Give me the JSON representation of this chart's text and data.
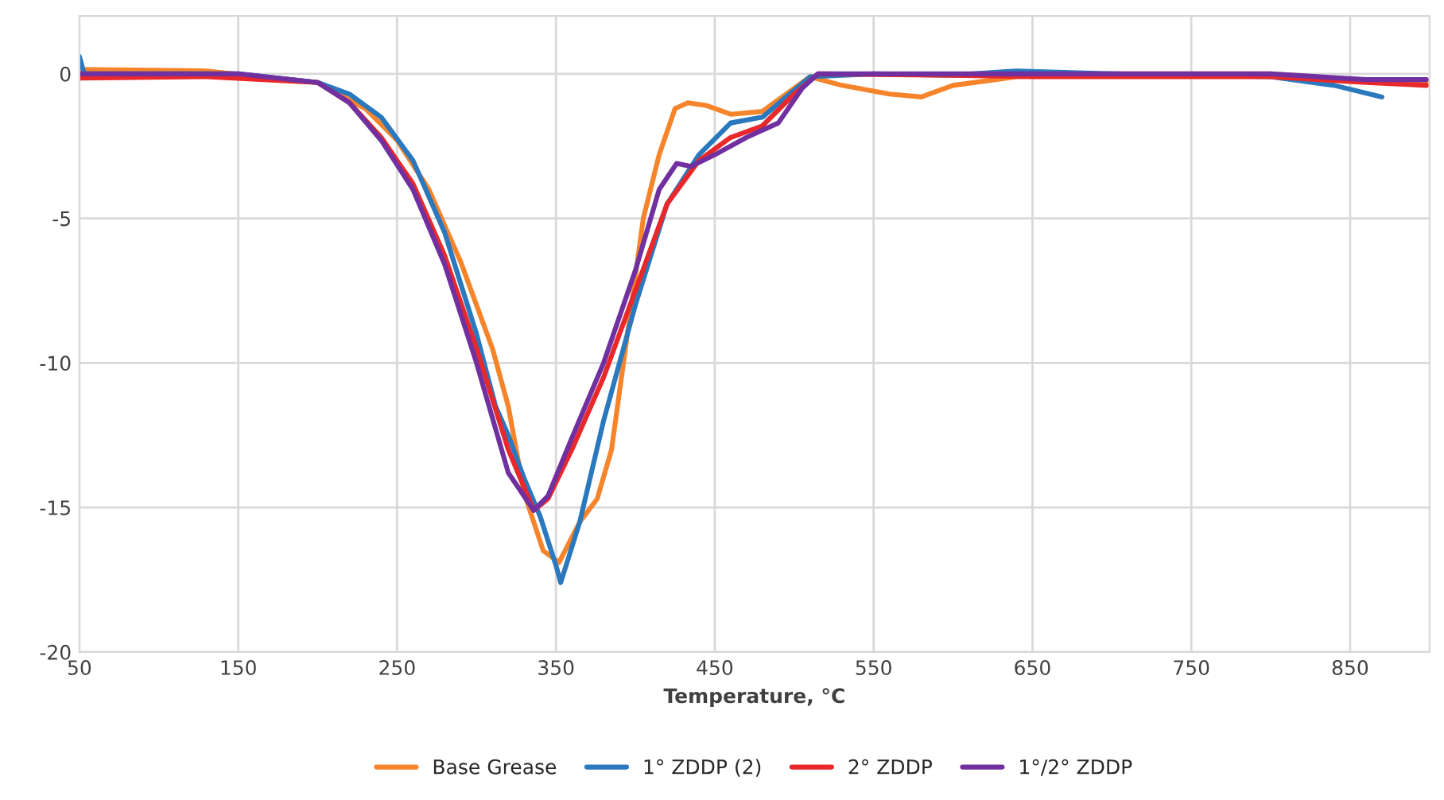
{
  "chart_data": {
    "type": "line",
    "xlabel": "Temperature, °C",
    "xlim": [
      50,
      900
    ],
    "xticks": [
      50,
      150,
      250,
      350,
      450,
      550,
      650,
      750,
      850
    ],
    "ylim": [
      -20,
      2
    ],
    "yticks": [
      0,
      -5,
      -10,
      -15,
      -20
    ],
    "grid": true,
    "legend": "bottom",
    "line_style": "solid",
    "marker": "none",
    "series": [
      {
        "name": "Base Grease",
        "color": "#f5842a",
        "x": [
          50,
          130,
          200,
          230,
          250,
          270,
          290,
          310,
          320,
          330,
          342,
          352,
          365,
          376,
          385,
          395,
          405,
          415,
          425,
          433,
          445,
          460,
          480,
          495,
          510,
          530,
          560,
          580,
          600,
          640,
          700,
          800,
          880,
          898
        ],
        "values": [
          0.15,
          0.1,
          -0.3,
          -1.2,
          -2.3,
          -4,
          -6.5,
          -9.5,
          -11.5,
          -14.5,
          -16.5,
          -16.9,
          -15.5,
          -14.7,
          -13,
          -9,
          -5,
          -2.8,
          -1.2,
          -1.0,
          -1.1,
          -1.4,
          -1.3,
          -0.7,
          -0.1,
          -0.4,
          -0.7,
          -0.8,
          -0.4,
          -0.1,
          0,
          0,
          -0.3,
          -0.3
        ]
      },
      {
        "name": "1° ZDDP (2)",
        "color": "#2a78bd",
        "x": [
          50,
          53,
          100,
          150,
          200,
          220,
          240,
          260,
          280,
          300,
          312,
          320,
          330,
          340,
          350,
          353,
          365,
          380,
          400,
          420,
          440,
          460,
          480,
          495,
          510,
          550,
          600,
          640,
          700,
          800,
          840,
          870
        ],
        "values": [
          0.6,
          0,
          0,
          0,
          -0.3,
          -0.7,
          -1.5,
          -3,
          -5.5,
          -9,
          -11.5,
          -12.5,
          -14,
          -15.3,
          -17,
          -17.6,
          -15.5,
          -12,
          -8,
          -4.5,
          -2.8,
          -1.7,
          -1.5,
          -0.8,
          -0.1,
          0,
          -0.05,
          0.1,
          0,
          -0.1,
          -0.4,
          -0.8
        ]
      },
      {
        "name": "2° ZDDP",
        "color": "#e8282b",
        "x": [
          50,
          130,
          200,
          220,
          240,
          260,
          280,
          300,
          320,
          336,
          345,
          360,
          380,
          400,
          420,
          440,
          460,
          480,
          500,
          515,
          600,
          650,
          700,
          800,
          860,
          898
        ],
        "values": [
          -0.15,
          -0.1,
          -0.3,
          -1,
          -2.2,
          -3.8,
          -6.3,
          -9.5,
          -13,
          -15.1,
          -14.7,
          -13,
          -10.5,
          -7.5,
          -4.5,
          -3,
          -2.2,
          -1.8,
          -0.7,
          0,
          -0.05,
          -0.1,
          -0.1,
          -0.1,
          -0.3,
          -0.4
        ]
      },
      {
        "name": "1°/2° ZDDP",
        "color": "#7030a0",
        "x": [
          50,
          100,
          150,
          200,
          220,
          240,
          260,
          280,
          300,
          320,
          336,
          345,
          360,
          380,
          400,
          415,
          426,
          435,
          450,
          470,
          490,
          505,
          515,
          600,
          700,
          800,
          860,
          898
        ],
        "values": [
          0,
          0,
          0,
          -0.3,
          -1,
          -2.3,
          -4,
          -6.6,
          -10,
          -13.8,
          -15.1,
          -14.6,
          -12.6,
          -10,
          -6.8,
          -4,
          -3.1,
          -3.2,
          -2.8,
          -2.2,
          -1.7,
          -0.5,
          0,
          0,
          0,
          0,
          -0.2,
          -0.2
        ]
      }
    ]
  }
}
